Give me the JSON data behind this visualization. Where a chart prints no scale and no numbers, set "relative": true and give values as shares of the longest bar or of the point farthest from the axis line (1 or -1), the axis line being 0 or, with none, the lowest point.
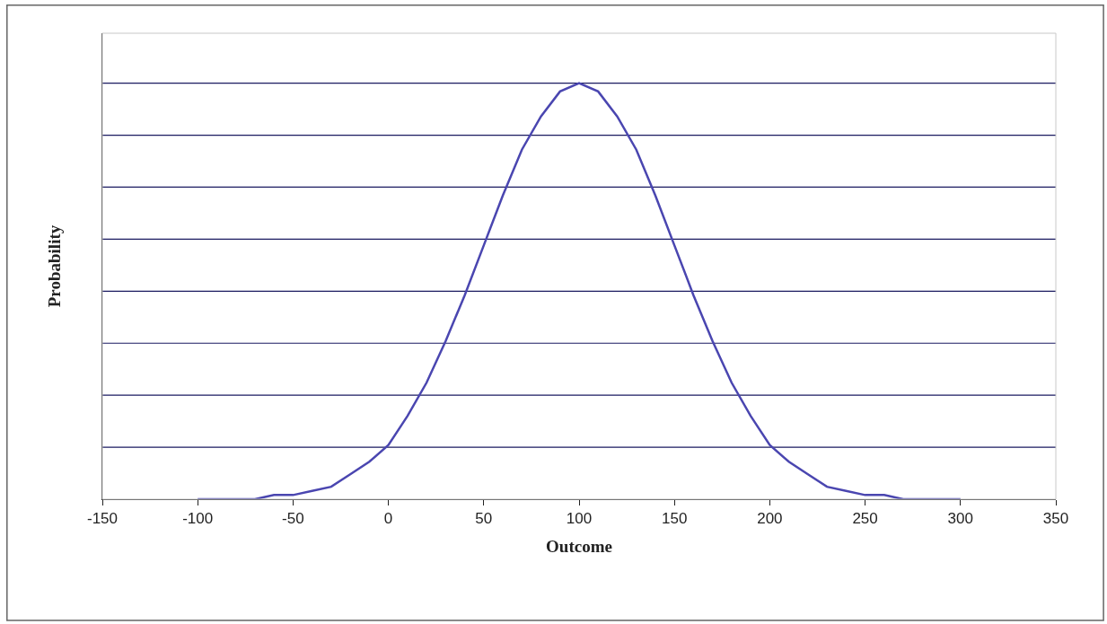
{
  "chart_data": {
    "type": "line",
    "xlabel": "Outcome",
    "ylabel": "Probability",
    "relative": true,
    "ref_lines": [
      {
        "axis": "y",
        "value": 0.125,
        "color": "#1a1a60"
      },
      {
        "axis": "y",
        "value": 0.25,
        "color": "#1a1a60"
      },
      {
        "axis": "y",
        "value": 0.375,
        "color": "#1a1a60"
      },
      {
        "axis": "y",
        "value": 0.5,
        "color": "#1a1a60"
      },
      {
        "axis": "y",
        "value": 0.625,
        "color": "#1a1a60"
      },
      {
        "axis": "y",
        "value": 0.75,
        "color": "#1a1a60"
      },
      {
        "axis": "y",
        "value": 0.875,
        "color": "#1a1a60"
      },
      {
        "axis": "y",
        "value": 1,
        "color": "#1a1a60"
      }
    ],
    "marker": "none",
    "line_style": "solid",
    "legend": false,
    "xlim": [
      -150,
      350
    ],
    "xticks": [
      -150,
      -100,
      -50,
      0,
      50,
      100,
      150,
      200,
      250,
      300,
      350
    ],
    "x": [
      -100,
      -90,
      -80,
      -70,
      -60,
      -50,
      -40,
      -30,
      -20,
      -10,
      0,
      10,
      20,
      30,
      40,
      50,
      60,
      70,
      80,
      90,
      100,
      110,
      120,
      130,
      140,
      150,
      160,
      170,
      180,
      190,
      200,
      210,
      220,
      230,
      240,
      250,
      260,
      270,
      280,
      290,
      300
    ],
    "series": [
      {
        "color": "#4a46b0",
        "values": [
          0.0,
          0.0,
          0.0,
          0.0,
          0.01,
          0.01,
          0.02,
          0.03,
          0.06,
          0.09,
          0.13,
          0.2,
          0.28,
          0.38,
          0.49,
          0.61,
          0.73,
          0.84,
          0.92,
          0.98,
          1,
          0.98,
          0.92,
          0.84,
          0.73,
          0.61,
          0.49,
          0.38,
          0.28,
          0.2,
          0.13,
          0.09,
          0.06,
          0.03,
          0.02,
          0.01,
          0.01,
          0.0,
          0.0,
          0.0,
          0.0
        ]
      }
    ]
  }
}
